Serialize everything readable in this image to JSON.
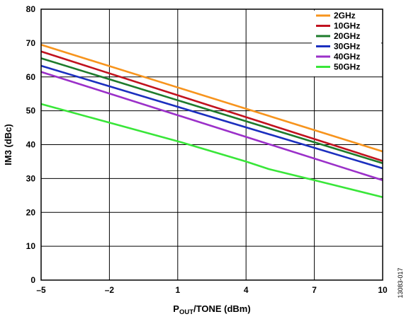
{
  "chart_data": {
    "type": "line",
    "xlabel_main": "P",
    "xlabel_sub": "OUT",
    "xlabel_rest": "/TONE (dBm)",
    "ylabel": "IM3 (dBc)",
    "xlim": [
      -5,
      10
    ],
    "ylim": [
      0,
      80
    ],
    "xticks": [
      -5,
      -2,
      1,
      4,
      7,
      10
    ],
    "xtick_labels": [
      "–5",
      "–2",
      "1",
      "4",
      "7",
      "10"
    ],
    "yticks": [
      0,
      10,
      20,
      30,
      40,
      50,
      60,
      70,
      80
    ],
    "ytick_labels": [
      "0",
      "10",
      "20",
      "30",
      "40",
      "50",
      "60",
      "70",
      "80"
    ],
    "grid": true,
    "legend_position": "top-right",
    "series": [
      {
        "name": "2GHz",
        "color": "#f7941d",
        "x": [
          -5,
          10
        ],
        "y": [
          69.5,
          38
        ]
      },
      {
        "name": "10GHz",
        "color": "#c1121f",
        "x": [
          -5,
          10
        ],
        "y": [
          67.5,
          35.2
        ]
      },
      {
        "name": "20GHz",
        "color": "#1e7b2c",
        "x": [
          -5,
          10
        ],
        "y": [
          65.5,
          34.5
        ]
      },
      {
        "name": "30GHz",
        "color": "#1b2fbf",
        "x": [
          -5,
          10
        ],
        "y": [
          63.3,
          33
        ]
      },
      {
        "name": "40GHz",
        "color": "#9b30c9",
        "x": [
          -5,
          10
        ],
        "y": [
          61.5,
          29.5
        ]
      },
      {
        "name": "50GHz",
        "color": "#39e639",
        "x": [
          -5,
          -2,
          1,
          4,
          5,
          7,
          10
        ],
        "y": [
          52,
          46.5,
          41,
          35,
          32.8,
          29.5,
          24.5
        ]
      }
    ]
  },
  "figure_id": "13083-017"
}
